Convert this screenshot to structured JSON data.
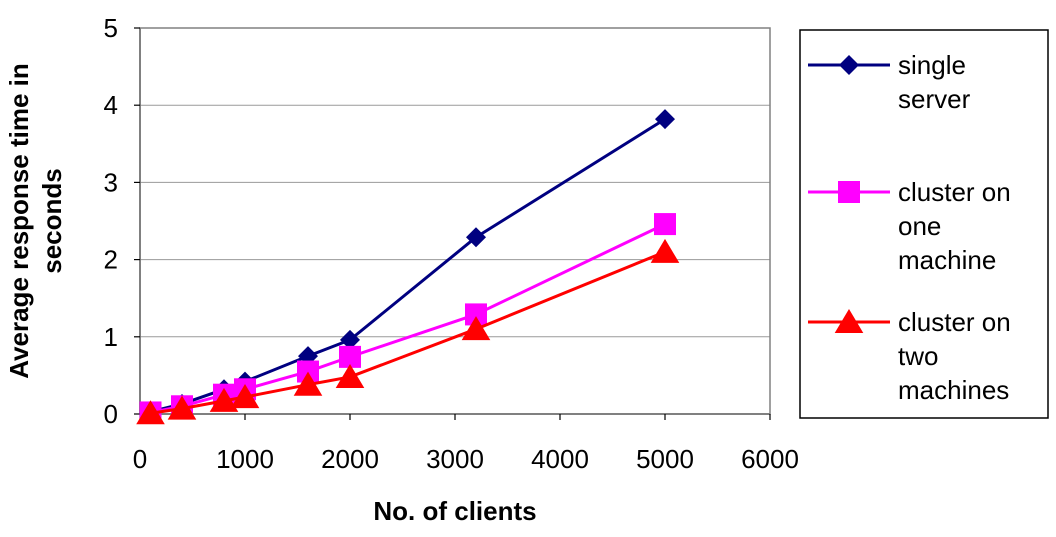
{
  "chart_data": {
    "type": "line",
    "title": "",
    "xlabel": "No. of clients",
    "ylabel": "Average response time in seconds",
    "xlim": [
      0,
      6000
    ],
    "ylim": [
      0,
      5
    ],
    "x_ticks": [
      "0",
      "1000",
      "2000",
      "3000",
      "4000",
      "5000",
      "6000"
    ],
    "y_ticks": [
      "0",
      "1",
      "2",
      "3",
      "4",
      "5"
    ],
    "grid": "horizontal",
    "legend_position": "right",
    "series": [
      {
        "name": "single server",
        "color": "#000080",
        "marker": "diamond",
        "x": [
          100,
          400,
          800,
          1000,
          1600,
          2000,
          3200,
          5000
        ],
        "y": [
          0.03,
          0.13,
          0.32,
          0.42,
          0.75,
          0.96,
          2.29,
          3.82
        ]
      },
      {
        "name": "cluster on one machine",
        "color": "#ff00ff",
        "marker": "square",
        "x": [
          100,
          400,
          800,
          1000,
          1600,
          2000,
          3200,
          5000
        ],
        "y": [
          0.02,
          0.1,
          0.25,
          0.32,
          0.55,
          0.74,
          1.29,
          2.46
        ]
      },
      {
        "name": "cluster on two machines",
        "color": "#ff0000",
        "marker": "triangle",
        "x": [
          100,
          400,
          800,
          1000,
          1600,
          2000,
          3200,
          5000
        ],
        "y": [
          0.01,
          0.07,
          0.17,
          0.22,
          0.38,
          0.48,
          1.1,
          2.1
        ]
      }
    ]
  },
  "legend": {
    "items": [
      {
        "lines": [
          "single",
          "server"
        ]
      },
      {
        "lines": [
          "cluster on",
          "one",
          "machine"
        ]
      },
      {
        "lines": [
          "cluster on",
          "two",
          "machines"
        ]
      }
    ]
  }
}
